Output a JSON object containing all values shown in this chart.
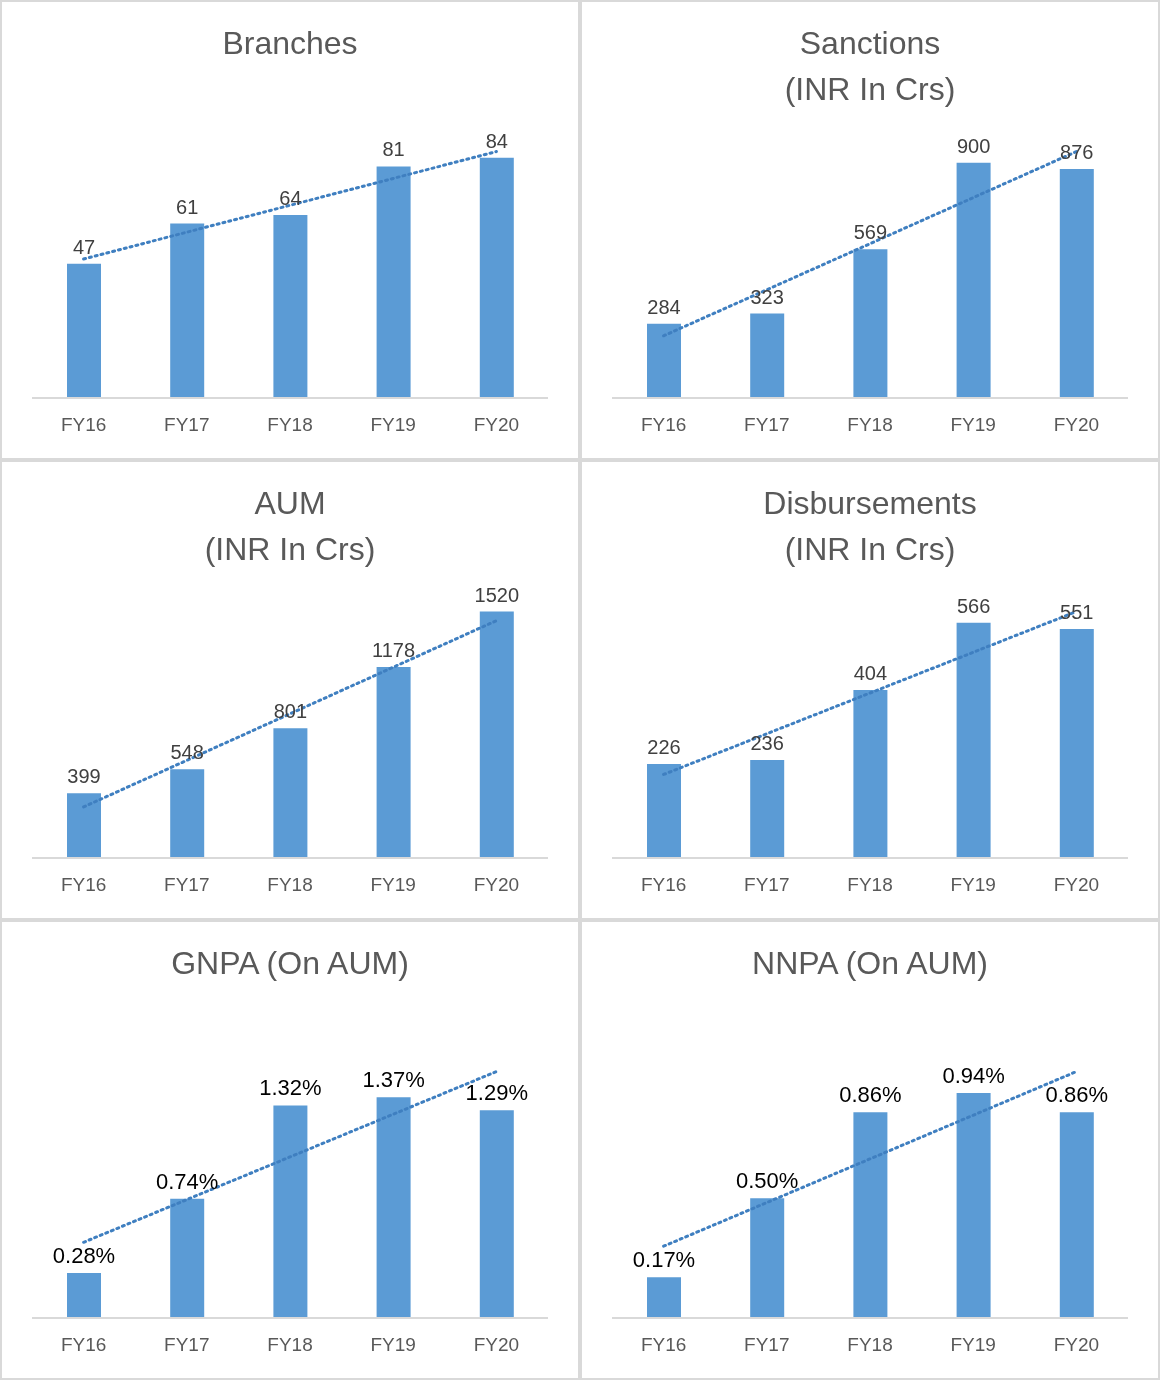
{
  "chart_data": [
    {
      "type": "bar",
      "title": "Branches",
      "categories": [
        "FY16",
        "FY17",
        "FY18",
        "FY19",
        "FY20"
      ],
      "legend": false,
      "grid": false,
      "series": [
        {
          "color": "#5b9bd5",
          "values": [
            47,
            61,
            64,
            81,
            84
          ],
          "value_labels": [
            "47",
            "61",
            "64",
            "81",
            "84"
          ]
        },
        {
          "type": "line",
          "color": "#3f7fc0",
          "x": [
            "FY16",
            "FY20"
          ],
          "values": [
            48.6,
            86.2
          ],
          "line_style": "dotted",
          "marker": "none"
        }
      ]
    },
    {
      "type": "bar",
      "title": "Sanctions\n(INR In Crs)",
      "categories": [
        "FY16",
        "FY17",
        "FY18",
        "FY19",
        "FY20"
      ],
      "legend": false,
      "grid": false,
      "series": [
        {
          "color": "#5b9bd5",
          "values": [
            284,
            323,
            569,
            900,
            876
          ],
          "value_labels": [
            "284",
            "323",
            "569",
            "900",
            "876"
          ]
        },
        {
          "type": "line",
          "color": "#3f7fc0",
          "x": [
            "FY16",
            "FY20"
          ],
          "values": [
            238,
            943
          ],
          "line_style": "dotted",
          "marker": "none"
        }
      ]
    },
    {
      "type": "bar",
      "title": "AUM\n(INR In Crs)",
      "categories": [
        "FY16",
        "FY17",
        "FY18",
        "FY19",
        "FY20"
      ],
      "legend": false,
      "grid": false,
      "series": [
        {
          "color": "#5b9bd5",
          "values": [
            399,
            548,
            801,
            1178,
            1520
          ],
          "value_labels": [
            "399",
            "548",
            "801",
            "1178",
            "1520"
          ]
        },
        {
          "type": "line",
          "color": "#3f7fc0",
          "x": [
            "FY16",
            "FY20"
          ],
          "values": [
            315,
            1464
          ],
          "line_style": "dotted",
          "marker": "none"
        }
      ]
    },
    {
      "type": "bar",
      "title": "Disbursements\n(INR In Crs)",
      "categories": [
        "FY16",
        "FY17",
        "FY18",
        "FY19",
        "FY20"
      ],
      "legend": false,
      "grid": false,
      "series": [
        {
          "color": "#5b9bd5",
          "values": [
            226,
            236,
            404,
            566,
            551
          ],
          "value_labels": [
            "226",
            "236",
            "404",
            "566",
            "551"
          ]
        },
        {
          "type": "line",
          "color": "#3f7fc0",
          "x": [
            "FY16",
            "FY20"
          ],
          "values": [
            201,
            593
          ],
          "line_style": "dotted",
          "marker": "none"
        }
      ]
    },
    {
      "type": "bar",
      "title": "GNPA (On AUM)",
      "categories": [
        "FY16",
        "FY17",
        "FY18",
        "FY19",
        "FY20"
      ],
      "legend": false,
      "grid": false,
      "series": [
        {
          "color": "#5b9bd5",
          "values": [
            0.28,
            0.74,
            1.32,
            1.37,
            1.29
          ],
          "value_labels": [
            "0.28%",
            "0.74%",
            "1.32%",
            "1.37%",
            "1.29%"
          ]
        },
        {
          "type": "line",
          "color": "#3f7fc0",
          "x": [
            "FY16",
            "FY20"
          ],
          "values": [
            0.47,
            1.53
          ],
          "line_style": "dotted",
          "marker": "none"
        }
      ]
    },
    {
      "type": "bar",
      "title": "NNPA (On AUM)",
      "categories": [
        "FY16",
        "FY17",
        "FY18",
        "FY19",
        "FY20"
      ],
      "legend": false,
      "grid": false,
      "series": [
        {
          "color": "#5b9bd5",
          "values": [
            0.17,
            0.5,
            0.86,
            0.94,
            0.86
          ],
          "value_labels": [
            "0.17%",
            "0.50%",
            "0.86%",
            "0.94%",
            "0.86%"
          ]
        },
        {
          "type": "line",
          "color": "#3f7fc0",
          "x": [
            "FY16",
            "FY20"
          ],
          "values": [
            0.3,
            1.03
          ],
          "line_style": "dotted",
          "marker": "none"
        }
      ]
    }
  ]
}
